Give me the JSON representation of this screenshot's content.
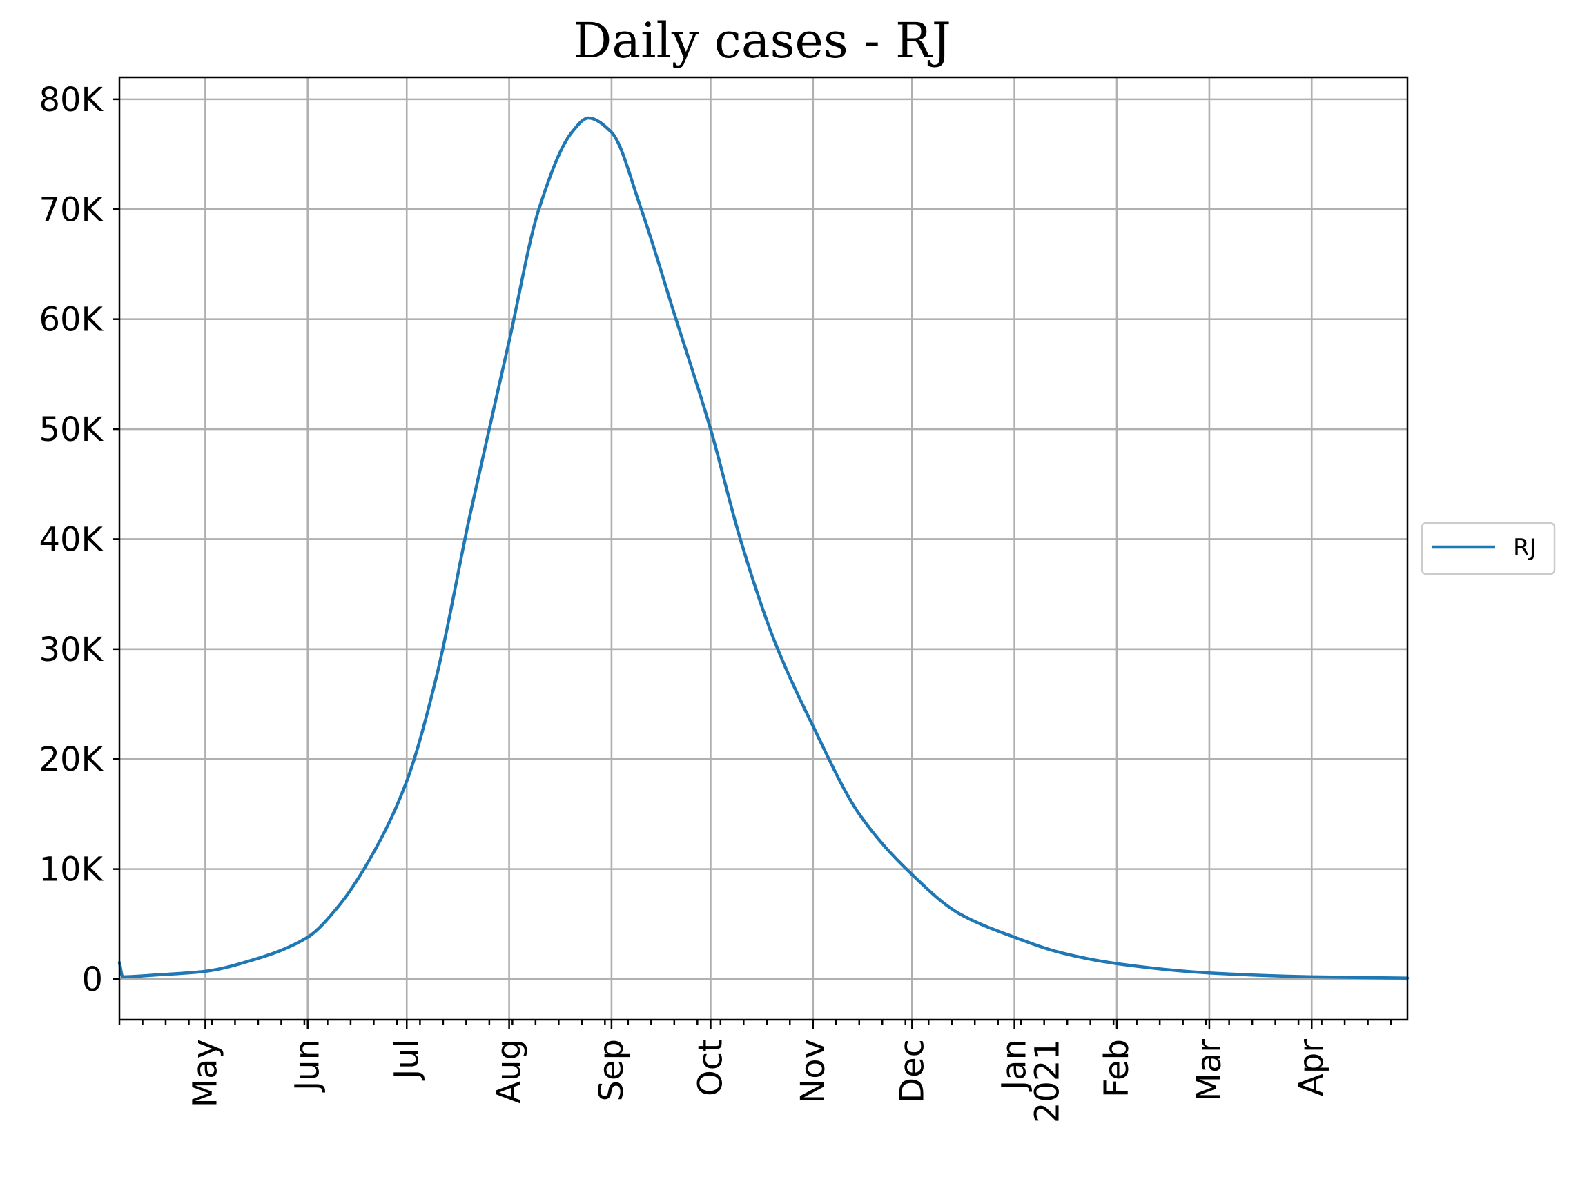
{
  "chart_data": {
    "type": "line",
    "title": "Daily cases - RJ",
    "xlabel": "",
    "ylabel": "",
    "x_axis_type": "date",
    "xlim": [
      "2020-04-05",
      "2021-04-30"
    ],
    "ylim": [
      -3700,
      82000
    ],
    "grid": true,
    "legend_position": "center right, outside plot",
    "colors": {
      "series": "#1f77b4",
      "grid": "#b0b0b0",
      "axes": "#000000"
    },
    "y_ticks": [
      {
        "value": 0,
        "label": "0"
      },
      {
        "value": 10000,
        "label": "10K"
      },
      {
        "value": 20000,
        "label": "20K"
      },
      {
        "value": 30000,
        "label": "30K"
      },
      {
        "value": 40000,
        "label": "40K"
      },
      {
        "value": 50000,
        "label": "50K"
      },
      {
        "value": 60000,
        "label": "60K"
      },
      {
        "value": 70000,
        "label": "70K"
      },
      {
        "value": 80000,
        "label": "80K"
      }
    ],
    "x_ticks": [
      {
        "date": "2020-05-01",
        "label": "May"
      },
      {
        "date": "2020-06-01",
        "label": "Jun"
      },
      {
        "date": "2020-07-01",
        "label": "Jul"
      },
      {
        "date": "2020-08-01",
        "label": "Aug"
      },
      {
        "date": "2020-09-01",
        "label": "Sep"
      },
      {
        "date": "2020-10-01",
        "label": "Oct"
      },
      {
        "date": "2020-11-01",
        "label": "Nov"
      },
      {
        "date": "2020-12-01",
        "label": "Dec"
      },
      {
        "date": "2021-01-01",
        "label": "Jan\n2021"
      },
      {
        "date": "2021-02-01",
        "label": "Feb"
      },
      {
        "date": "2021-03-01",
        "label": "Mar"
      },
      {
        "date": "2021-04-01",
        "label": "Apr"
      }
    ],
    "series": [
      {
        "name": "RJ",
        "points": [
          [
            "2020-04-05",
            1500
          ],
          [
            "2020-04-06",
            200
          ],
          [
            "2020-04-15",
            350
          ],
          [
            "2020-05-01",
            700
          ],
          [
            "2020-05-15",
            1700
          ],
          [
            "2020-06-01",
            3800
          ],
          [
            "2020-06-10",
            6500
          ],
          [
            "2020-06-20",
            11000
          ],
          [
            "2020-07-01",
            18000
          ],
          [
            "2020-07-10",
            27500
          ],
          [
            "2020-07-20",
            42000
          ],
          [
            "2020-08-01",
            58000
          ],
          [
            "2020-08-10",
            70000
          ],
          [
            "2020-08-20",
            77000
          ],
          [
            "2020-08-25",
            78300
          ],
          [
            "2020-09-01",
            77000
          ],
          [
            "2020-09-10",
            70000
          ],
          [
            "2020-09-20",
            60500
          ],
          [
            "2020-10-01",
            50000
          ],
          [
            "2020-10-10",
            40000
          ],
          [
            "2020-10-20",
            31000
          ],
          [
            "2020-11-01",
            23000
          ],
          [
            "2020-11-15",
            15000
          ],
          [
            "2020-12-01",
            9500
          ],
          [
            "2020-12-15",
            6000
          ],
          [
            "2021-01-01",
            3800
          ],
          [
            "2021-01-15",
            2400
          ],
          [
            "2021-02-01",
            1400
          ],
          [
            "2021-03-01",
            550
          ],
          [
            "2021-04-01",
            200
          ],
          [
            "2021-04-30",
            80
          ]
        ]
      }
    ]
  }
}
